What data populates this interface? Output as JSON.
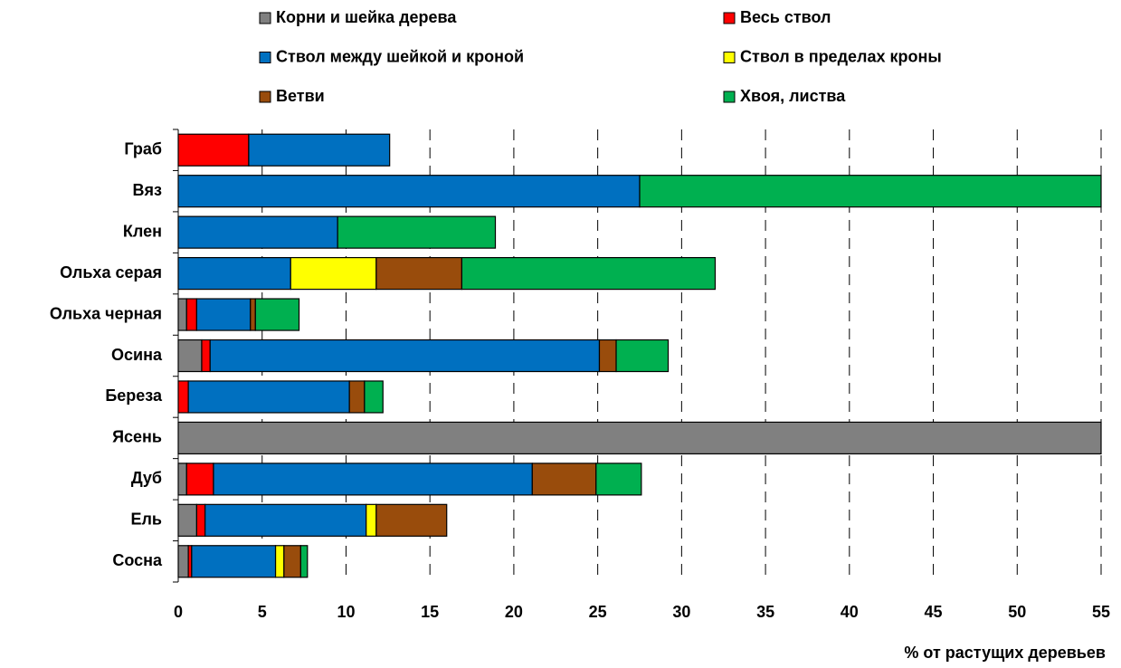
{
  "chart_data": {
    "type": "stacked-bar-horizontal",
    "x_label": "% от растущих деревьев",
    "categories": [
      "Граб",
      "Вяз",
      "Клен",
      "Ольха серая",
      "Ольха черная",
      "Осина",
      "Береза",
      "Ясень",
      "Дуб",
      "Ель",
      "Сосна"
    ],
    "series": [
      {
        "name": "Корни и шейка дерева",
        "color": "#808080",
        "values": [
          0,
          0,
          0,
          0,
          0.5,
          1.4,
          0,
          55,
          0.5,
          1.1,
          0.6
        ]
      },
      {
        "name": "Весь ствол",
        "color": "#ff0000",
        "values": [
          4.2,
          0,
          0,
          0,
          0.6,
          0.5,
          0.6,
          0,
          1.6,
          0.5,
          0.2
        ]
      },
      {
        "name": "Ствол между шейкой и кроной",
        "color": "#0070c0",
        "values": [
          8.4,
          27.5,
          9.5,
          6.7,
          3.2,
          23.2,
          9.6,
          0,
          19.0,
          9.6,
          5.0
        ]
      },
      {
        "name": "Ствол в пределах кроны",
        "color": "#ffff00",
        "values": [
          0,
          0,
          0,
          5.1,
          0,
          0,
          0,
          0,
          0,
          0.6,
          0.5
        ]
      },
      {
        "name": "Ветви",
        "color": "#994c0c",
        "values": [
          0,
          0,
          0,
          5.1,
          0.3,
          1.0,
          0.9,
          0,
          3.8,
          4.2,
          1.0
        ]
      },
      {
        "name": "Хвоя, листва",
        "color": "#00b050",
        "values": [
          0,
          27.5,
          9.4,
          15.1,
          2.6,
          3.1,
          1.1,
          0,
          2.7,
          0,
          0.4
        ]
      }
    ],
    "xlim": [
      0,
      55
    ],
    "xticks": [
      0,
      5,
      10,
      15,
      20,
      25,
      30,
      35,
      40,
      45,
      50,
      55
    ],
    "grid": true
  }
}
